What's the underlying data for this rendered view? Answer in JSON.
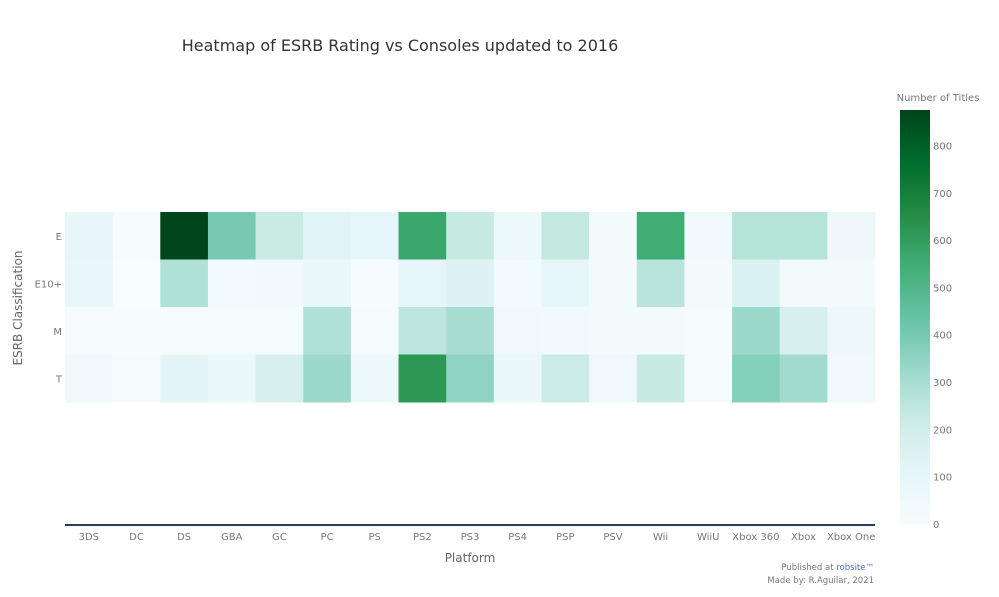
{
  "chart_data": {
    "type": "heatmap",
    "title": "Heatmap of ESRB Rating vs Consoles updated to 2016",
    "xlabel": "Platform",
    "ylabel": "ESRB Classification",
    "x_categories": [
      "3DS",
      "DC",
      "DS",
      "GBA",
      "GC",
      "PC",
      "PS",
      "PS2",
      "PS3",
      "PS4",
      "PSP",
      "PSV",
      "Wii",
      "WiiU",
      "Xbox 360",
      "Xbox",
      "Xbox One"
    ],
    "y_categories": [
      "E",
      "E10+",
      "M",
      "T"
    ],
    "values": [
      [
        90,
        8,
        875,
        400,
        225,
        130,
        110,
        570,
        230,
        60,
        240,
        30,
        550,
        40,
        270,
        270,
        55
      ],
      [
        80,
        2,
        280,
        35,
        40,
        70,
        5,
        110,
        140,
        35,
        100,
        30,
        260,
        30,
        160,
        30,
        30
      ],
      [
        15,
        5,
        20,
        10,
        20,
        280,
        10,
        250,
        300,
        50,
        40,
        30,
        25,
        15,
        320,
        170,
        60
      ],
      [
        50,
        20,
        120,
        70,
        170,
        320,
        60,
        620,
        350,
        70,
        220,
        50,
        230,
        20,
        370,
        310,
        50
      ]
    ],
    "colorbar": {
      "title": "Number of Titles",
      "min": 0,
      "max": 875,
      "ticks": [
        0,
        100,
        200,
        300,
        400,
        500,
        600,
        700,
        800
      ]
    },
    "colorscale": [
      "#f7fcfd",
      "#e5f5f9",
      "#ccece6",
      "#99d8c9",
      "#66c2a4",
      "#41ae76",
      "#238b45",
      "#006d2c",
      "#00441b"
    ]
  },
  "footer": {
    "published_prefix": "Published at ",
    "published_site": "robsite™",
    "made_by": "Made by: R.Aguilar, 2021"
  }
}
